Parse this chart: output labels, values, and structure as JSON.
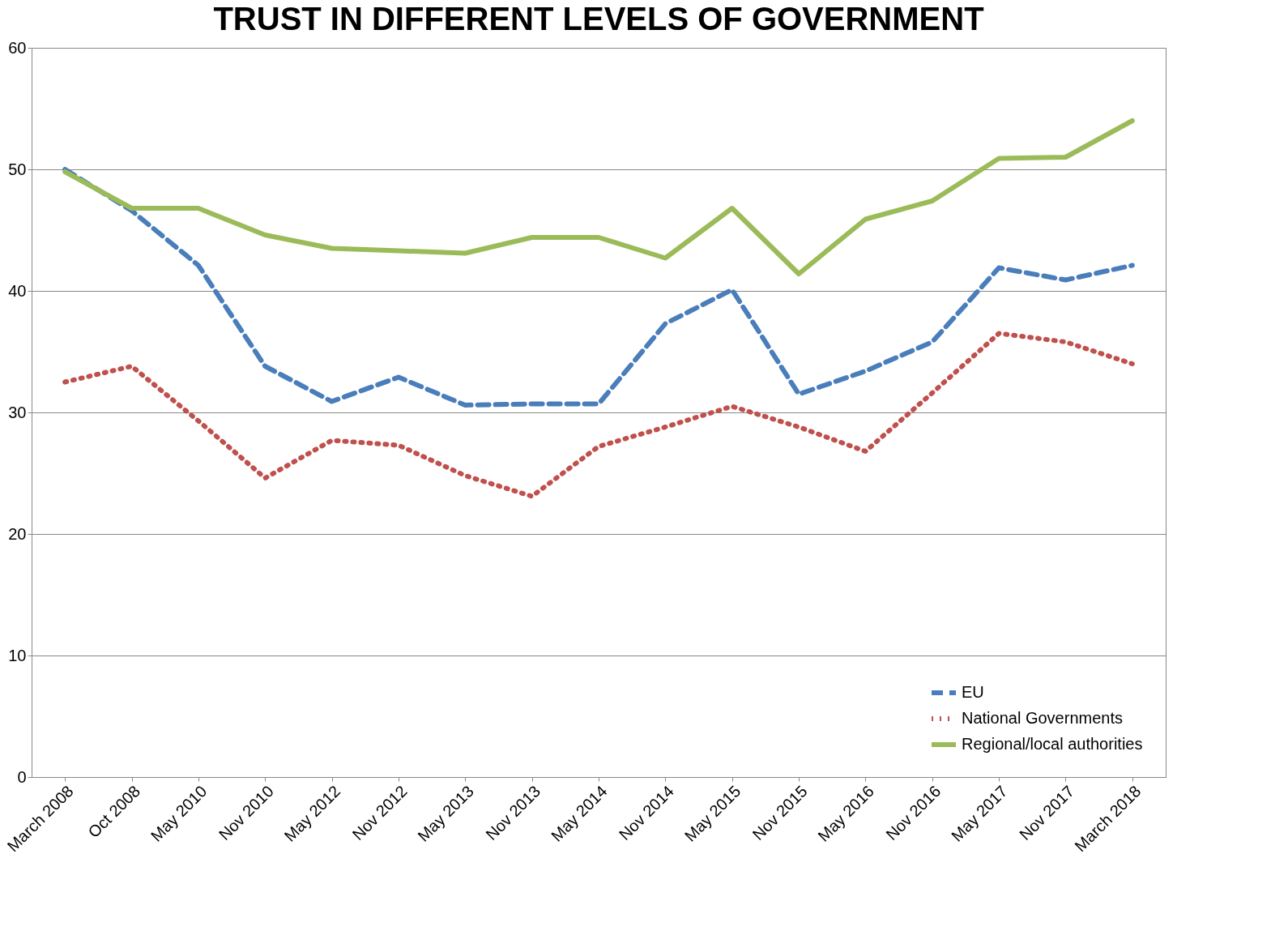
{
  "chart_data": {
    "type": "line",
    "title": "TRUST IN DIFFERENT LEVELS OF GOVERNMENT",
    "categories": [
      "March 2008",
      "Oct 2008",
      "May 2010",
      "Nov 2010",
      "May 2012",
      "Nov 2012",
      "May 2013",
      "Nov 2013",
      "May 2014",
      "Nov 2014",
      "May 2015",
      "Nov 2015",
      "May 2016",
      "Nov 2016",
      "May 2017",
      "Nov 2017",
      "March 2018"
    ],
    "series": [
      {
        "name": "EU",
        "color": "#4a7ebb",
        "line_style": "dashed",
        "values": [
          50.0,
          46.6,
          42.1,
          33.8,
          30.9,
          32.9,
          30.6,
          30.7,
          30.7,
          37.3,
          40.1,
          31.5,
          33.4,
          35.8,
          41.9,
          40.9,
          42.1
        ]
      },
      {
        "name": "National Governments",
        "color": "#c0504d",
        "line_style": "dotted",
        "values": [
          32.5,
          33.8,
          29.3,
          24.6,
          27.7,
          27.3,
          24.8,
          23.1,
          27.2,
          28.8,
          30.5,
          28.8,
          26.8,
          31.6,
          36.5,
          35.8,
          34.0
        ]
      },
      {
        "name": "Regional/local authorities",
        "color": "#9bbb59",
        "line_style": "solid",
        "values": [
          49.8,
          46.8,
          46.8,
          44.6,
          43.5,
          43.3,
          43.1,
          44.4,
          44.4,
          42.7,
          46.8,
          41.4,
          45.9,
          47.4,
          50.9,
          51.0,
          54.0
        ]
      }
    ],
    "ylim": [
      0,
      60
    ],
    "yticks": [
      0,
      10,
      20,
      30,
      40,
      50,
      60
    ],
    "grid": "y",
    "legend": "bottom right"
  }
}
